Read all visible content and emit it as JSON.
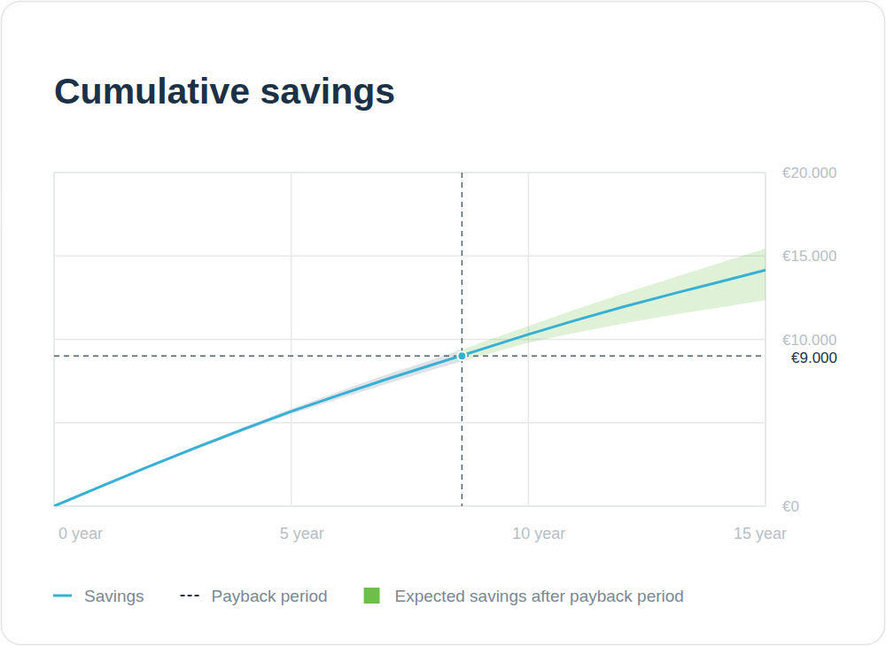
{
  "chart_data": {
    "type": "line",
    "title": "Cumulative savings",
    "x": [
      0,
      1,
      2,
      3,
      4,
      5,
      6,
      7,
      8,
      9,
      10,
      11,
      12,
      13,
      14,
      15
    ],
    "xlim": [
      0,
      15
    ],
    "xticks": [
      {
        "value": 0,
        "label": "0 year"
      },
      {
        "value": 5,
        "label": "5 year"
      },
      {
        "value": 10,
        "label": "10 year"
      },
      {
        "value": 15,
        "label": "15 year"
      }
    ],
    "ylim": [
      0,
      20000
    ],
    "yticks": [
      {
        "value": 0,
        "label": "€0"
      },
      {
        "value": 5000,
        "label": null
      },
      {
        "value": 10000,
        "label": "€10.000"
      },
      {
        "value": 15000,
        "label": "€15.000"
      },
      {
        "value": 20000,
        "label": "€20.000"
      }
    ],
    "grid": true,
    "legend": "bottom",
    "series": [
      {
        "name": "Savings",
        "type": "line",
        "color": "#38b0d3",
        "line_style": "solid",
        "values": [
          0,
          1200,
          2380,
          3520,
          4620,
          5680,
          6650,
          7600,
          8500,
          9400,
          10300,
          11150,
          11950,
          12700,
          13420,
          14150
        ]
      },
      {
        "name": "Expected savings after payback period",
        "type": "band",
        "color": "#6cc04a",
        "lower": [
          0,
          1170,
          2320,
          3430,
          4500,
          5530,
          6430,
          7320,
          8200,
          9000,
          9800,
          10400,
          10950,
          11450,
          11900,
          12350
        ],
        "upper": [
          0,
          1230,
          2440,
          3610,
          4740,
          5830,
          6870,
          7880,
          8800,
          9800,
          10800,
          11800,
          12750,
          13650,
          14550,
          15450
        ]
      }
    ],
    "payback": {
      "name": "Payback period",
      "x": 8.6,
      "y": 9000,
      "label": "€9.000",
      "color": "#506373",
      "line_style": "dashed"
    }
  }
}
